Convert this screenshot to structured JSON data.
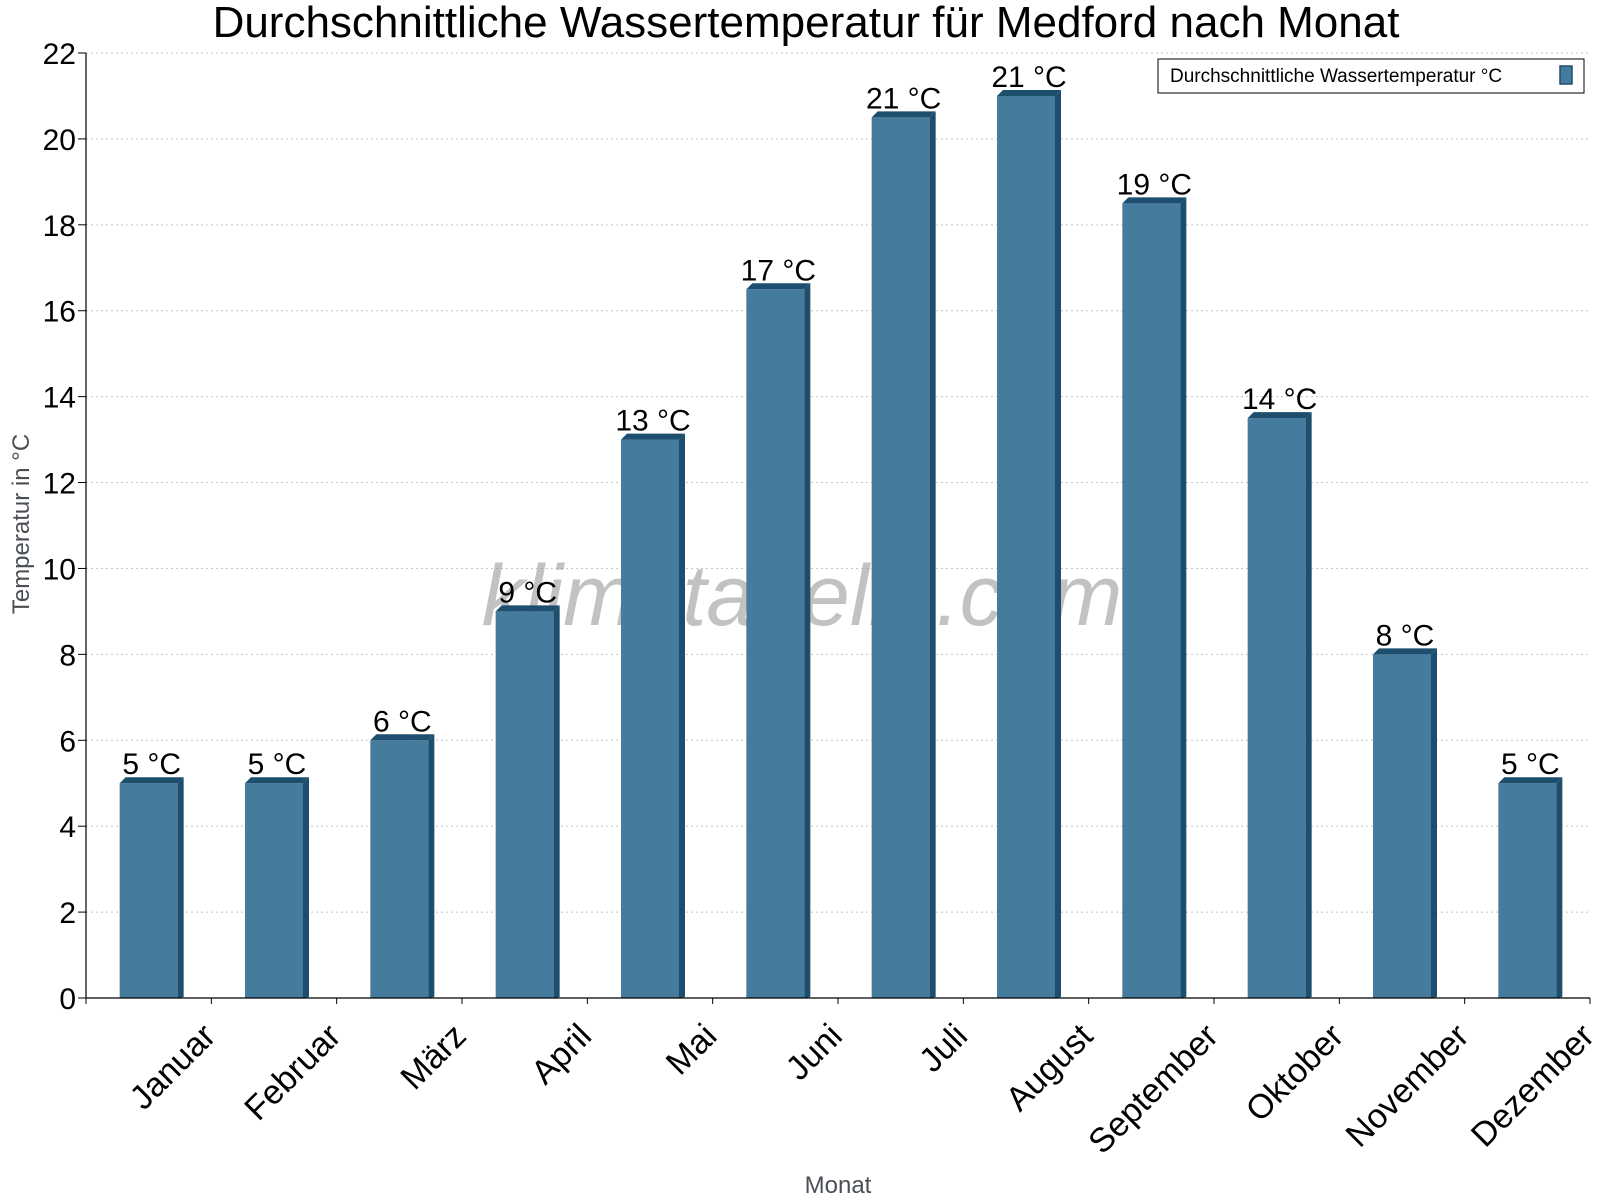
{
  "chart_data": {
    "type": "bar",
    "title": "Durchschnittliche Wassertemperatur für Medford nach Monat",
    "xlabel": "Monat",
    "ylabel": "Temperatur in °C",
    "categories": [
      "Januar",
      "Februar",
      "März",
      "April",
      "Mai",
      "Juni",
      "Juli",
      "August",
      "September",
      "Oktober",
      "November",
      "Dezember"
    ],
    "series": [
      {
        "name": "Durchschnittliche Wassertemperatur °C",
        "values": [
          5,
          5,
          6,
          9,
          13,
          16.5,
          20.5,
          21,
          18.5,
          13.5,
          8,
          5
        ],
        "labels": [
          "5 °C",
          "5 °C",
          "6 °C",
          "9 °C",
          "13 °C",
          "17 °C",
          "21 °C",
          "21 °C",
          "19 °C",
          "14 °C",
          "8 °C",
          "5 °C"
        ],
        "color": "#457b9d",
        "edge_color": "#1d4e6e"
      }
    ],
    "ylim": [
      0,
      22
    ],
    "yticks": [
      0,
      2,
      4,
      6,
      8,
      10,
      12,
      14,
      16,
      18,
      20,
      22
    ],
    "grid": true,
    "legend_position": "top-right",
    "watermark": "klimatabelle.com"
  }
}
